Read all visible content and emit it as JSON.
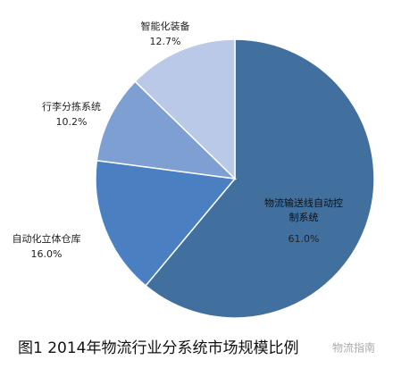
{
  "chart_data": {
    "type": "pie",
    "categories": [
      "物流输送线自动控制系统",
      "自动化立体仓库",
      "行李分拣系统",
      "智能化装备"
    ],
    "values": [
      61.0,
      16.0,
      10.2,
      12.7
    ],
    "value_labels": [
      "61.0%",
      "16.0%",
      "10.2%",
      "12.7%"
    ],
    "colors": [
      "#41709f",
      "#4a80c2",
      "#7e9fd2",
      "#b9c9e7"
    ],
    "caption": "图1 2014年物流行业分系统市场规模比例",
    "watermark": "物流指南"
  }
}
